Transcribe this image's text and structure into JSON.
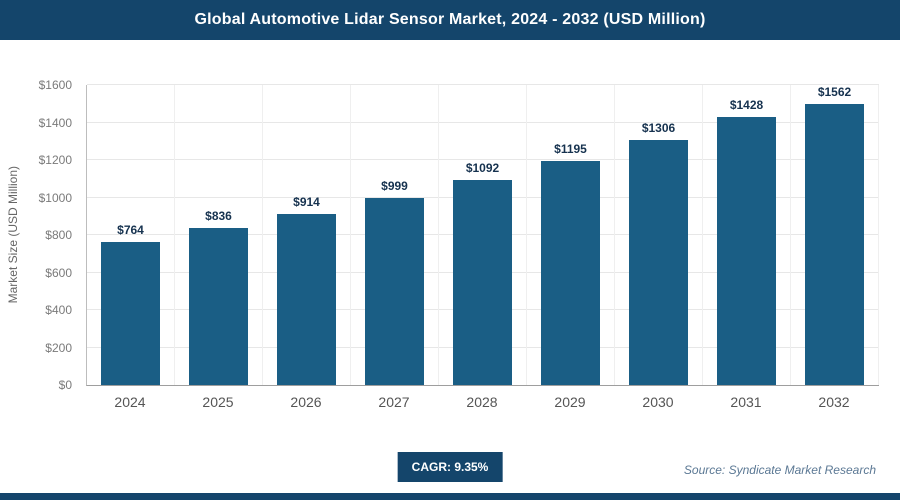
{
  "header": {
    "title": "Global Automotive Lidar Sensor Market, 2024 - 2032 (USD Million)"
  },
  "chart_data": {
    "type": "bar",
    "title": "Global Automotive Lidar Sensor Market, 2024 - 2032 (USD Million)",
    "categories": [
      "2024",
      "2025",
      "2026",
      "2027",
      "2028",
      "2029",
      "2030",
      "2031",
      "2032"
    ],
    "values": [
      764,
      836,
      914,
      999,
      1092,
      1195,
      1306,
      1428,
      1562
    ],
    "labels": [
      "$764",
      "$836",
      "$914",
      "$999",
      "$1092",
      "$1195",
      "$1306",
      "$1428",
      "$1562"
    ],
    "xlabel": "",
    "ylabel": "Market Size (USD Million)",
    "ylim": [
      0,
      1600
    ],
    "ytick_step": 200,
    "yticks": [
      "$0",
      "$200",
      "$400",
      "$600",
      "$800",
      "$1000",
      "$1200",
      "$1400",
      "$1600"
    ],
    "grid": true,
    "legend": "none",
    "bar_color": "#1a5e85"
  },
  "footer": {
    "cagr_label": "CAGR: 9.35%",
    "source": "Source: Syndicate Market Research"
  },
  "colors": {
    "header_bg": "#14456b",
    "bar": "#1a5e85",
    "cagr_bg": "#14456b",
    "footer_strip": "#14456b",
    "data_label": "#16324f"
  }
}
